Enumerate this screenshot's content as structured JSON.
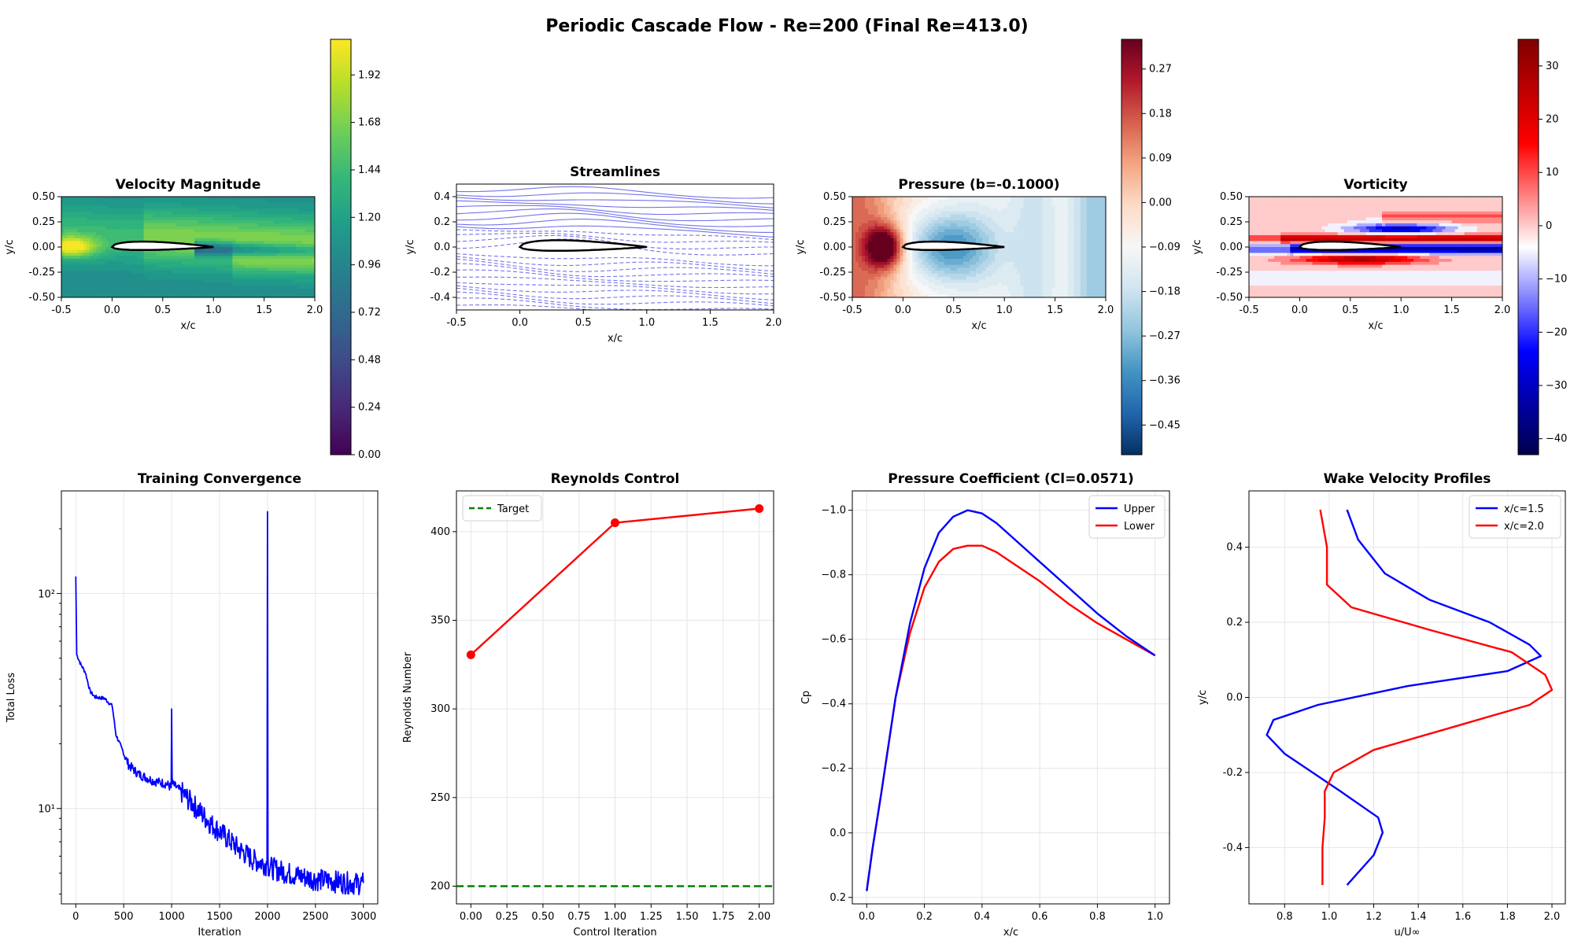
{
  "figure": {
    "suptitle": "Periodic Cascade Flow - Re=200 (Final Re=413.0)",
    "colors": {
      "viridis": [
        "#440154",
        "#482878",
        "#3e4a89",
        "#31688e",
        "#26828e",
        "#1f9e89",
        "#35b779",
        "#6ece58",
        "#b5de2b",
        "#fde725"
      ],
      "rdbu_red": "#67001f",
      "rdbu_blue": "#053061",
      "seismic_red": "#800000",
      "seismic_blue": "#00004c",
      "stream": "#5a5ae6",
      "blue": "#0000ff",
      "red": "#ff0000",
      "green": "#008000",
      "grid": "#e6e6e6"
    }
  },
  "chart_data": [
    {
      "id": "velocity",
      "type": "heatmap",
      "title": "Velocity Magnitude",
      "xlabel": "x/c",
      "ylabel": "y/c",
      "xlim": [
        -0.5,
        2.0
      ],
      "ylim": [
        -0.5,
        0.5
      ],
      "xticks": [
        "-0.5",
        "0.0",
        "0.5",
        "1.0",
        "1.5",
        "2.0"
      ],
      "yticks": [
        "-0.50",
        "-0.25",
        "0.00",
        "0.25",
        "0.50"
      ],
      "colorbar": {
        "range": [
          0,
          2.1
        ],
        "ticks": [
          "0.00",
          "0.24",
          "0.48",
          "0.72",
          "0.96",
          "1.20",
          "1.44",
          "1.68",
          "1.92"
        ]
      }
    },
    {
      "id": "streamlines",
      "type": "line",
      "title": "Streamlines",
      "xlabel": "x/c",
      "ylabel": "y/c",
      "xlim": [
        -0.5,
        2.0
      ],
      "ylim": [
        -0.5,
        0.5
      ],
      "xticks": [
        "-0.5",
        "0.0",
        "0.5",
        "1.0",
        "1.5",
        "2.0"
      ],
      "yticks": [
        "-0.4",
        "-0.2",
        "0.0",
        "0.2",
        "0.4"
      ]
    },
    {
      "id": "pressure",
      "type": "heatmap",
      "title": "Pressure (b=-0.1000)",
      "xlabel": "x/c",
      "ylabel": "y/c",
      "xlim": [
        -0.5,
        2.0
      ],
      "ylim": [
        -0.5,
        0.5
      ],
      "xticks": [
        "-0.5",
        "0.0",
        "0.5",
        "1.0",
        "1.5",
        "2.0"
      ],
      "yticks": [
        "-0.50",
        "-0.25",
        "0.00",
        "0.25",
        "0.50"
      ],
      "colorbar": {
        "range": [
          -0.51,
          0.33
        ],
        "ticks": [
          "−0.45",
          "−0.36",
          "−0.27",
          "−0.18",
          "−0.09",
          "0.00",
          "0.09",
          "0.18",
          "0.27"
        ]
      }
    },
    {
      "id": "vorticity",
      "type": "heatmap",
      "title": "Vorticity",
      "xlabel": "x/c",
      "ylabel": "y/c",
      "xlim": [
        -0.5,
        2.0
      ],
      "ylim": [
        -0.5,
        0.5
      ],
      "xticks": [
        "-0.5",
        "0.0",
        "0.5",
        "1.0",
        "1.5",
        "2.0"
      ],
      "yticks": [
        "-0.50",
        "-0.25",
        "0.00",
        "0.25",
        "0.50"
      ],
      "colorbar": {
        "range": [
          -43,
          35
        ],
        "ticks": [
          "−40",
          "−30",
          "−20",
          "−10",
          "0",
          "10",
          "20",
          "30"
        ]
      }
    },
    {
      "id": "training",
      "type": "line",
      "title": "Training Convergence",
      "xlabel": "Iteration",
      "ylabel": "Total Loss",
      "yscale": "log",
      "xlim": [
        -150,
        3150
      ],
      "ylim": [
        3.6,
        300
      ],
      "xticks": [
        "0",
        "500",
        "1000",
        "1500",
        "2000",
        "2500",
        "3000"
      ],
      "yticks": [
        "10¹",
        "10²"
      ],
      "series": [
        {
          "x": [
            0,
            10,
            50,
            100,
            150,
            200,
            300,
            380,
            420,
            480,
            550,
            650,
            800,
            950,
            995,
            1000,
            1005,
            1010,
            1100,
            1250,
            1400,
            1550,
            1700,
            1850,
            1995,
            2000,
            2005,
            2010,
            2100,
            2300,
            2500,
            2700,
            2900,
            3000
          ],
          "y": [
            120,
            52,
            47,
            43,
            35,
            33,
            32.5,
            30,
            22,
            19,
            16,
            14.5,
            13.5,
            13,
            12.5,
            29,
            14,
            13,
            12,
            10.2,
            8.6,
            7.5,
            6.5,
            5.8,
            5.5,
            240,
            6,
            5.4,
            5.2,
            4.9,
            4.7,
            4.6,
            4.5,
            4.5
          ]
        }
      ]
    },
    {
      "id": "reynolds",
      "type": "line",
      "title": "Reynolds Control",
      "xlabel": "Control Iteration",
      "ylabel": "Reynolds Number",
      "xlim": [
        -0.1,
        2.1
      ],
      "ylim": [
        190,
        423
      ],
      "xticks": [
        "0.00",
        "0.25",
        "0.50",
        "0.75",
        "1.00",
        "1.25",
        "1.50",
        "1.75",
        "2.00"
      ],
      "yticks": [
        "200",
        "250",
        "300",
        "350",
        "400"
      ],
      "legend": [
        "Target"
      ],
      "target": 200,
      "series": [
        {
          "x": [
            0,
            1,
            2
          ],
          "y": [
            330.5,
            405,
            413
          ]
        }
      ]
    },
    {
      "id": "cp",
      "type": "line",
      "title": "Pressure Coefficient (Cl=0.0571)",
      "xlabel": "x/c",
      "ylabel": "Cp",
      "xlim": [
        -0.05,
        1.05
      ],
      "ylim": [
        0.22,
        -1.06
      ],
      "xticks": [
        "0.0",
        "0.2",
        "0.4",
        "0.6",
        "0.8",
        "1.0"
      ],
      "yticks": [
        "0.2",
        "0.0",
        "−0.2",
        "−0.4",
        "−0.6",
        "−0.8",
        "−1.0"
      ],
      "legend": [
        "Upper",
        "Lower"
      ],
      "series": [
        {
          "name": "Upper",
          "x": [
            0,
            0.02,
            0.05,
            0.1,
            0.15,
            0.2,
            0.25,
            0.3,
            0.35,
            0.4,
            0.45,
            0.5,
            0.6,
            0.7,
            0.8,
            0.9,
            1.0
          ],
          "y": [
            0.18,
            0.05,
            -0.12,
            -0.42,
            -0.65,
            -0.82,
            -0.93,
            -0.98,
            -1.0,
            -0.99,
            -0.96,
            -0.92,
            -0.84,
            -0.76,
            -0.68,
            -0.61,
            -0.55
          ]
        },
        {
          "name": "Lower",
          "x": [
            0,
            0.02,
            0.05,
            0.1,
            0.15,
            0.2,
            0.25,
            0.3,
            0.35,
            0.4,
            0.45,
            0.5,
            0.6,
            0.7,
            0.8,
            0.9,
            1.0
          ],
          "y": [
            0.18,
            0.05,
            -0.12,
            -0.42,
            -0.62,
            -0.76,
            -0.84,
            -0.88,
            -0.89,
            -0.89,
            -0.87,
            -0.84,
            -0.78,
            -0.71,
            -0.65,
            -0.6,
            -0.55
          ]
        }
      ]
    },
    {
      "id": "wake",
      "type": "line",
      "title": "Wake Velocity Profiles",
      "xlabel": "u/U∞",
      "ylabel": "y/c",
      "xlim": [
        0.64,
        2.06
      ],
      "ylim": [
        -0.55,
        0.55
      ],
      "xticks": [
        "0.8",
        "1.0",
        "1.2",
        "1.4",
        "1.6",
        "1.8",
        "2.0"
      ],
      "yticks": [
        "-0.4",
        "-0.2",
        "0.0",
        "0.2",
        "0.4"
      ],
      "legend": [
        "x/c=1.5",
        "x/c=2.0"
      ],
      "series": [
        {
          "name": "x/c=1.5",
          "x": [
            1.08,
            1.13,
            1.25,
            1.45,
            1.72,
            1.9,
            1.95,
            1.8,
            1.35,
            0.95,
            0.75,
            0.72,
            0.8,
            1.05,
            1.22,
            1.24,
            1.2,
            1.08
          ],
          "y": [
            0.5,
            0.42,
            0.33,
            0.26,
            0.2,
            0.14,
            0.11,
            0.07,
            0.03,
            -0.02,
            -0.06,
            -0.1,
            -0.15,
            -0.25,
            -0.32,
            -0.36,
            -0.42,
            -0.5
          ]
        },
        {
          "name": "x/c=2.0",
          "x": [
            0.96,
            0.99,
            0.99,
            1.1,
            1.45,
            1.82,
            1.97,
            2.0,
            1.9,
            1.55,
            1.2,
            1.02,
            0.98,
            0.98,
            0.97,
            0.97
          ],
          "y": [
            0.5,
            0.4,
            0.3,
            0.24,
            0.18,
            0.12,
            0.06,
            0.02,
            -0.02,
            -0.08,
            -0.14,
            -0.2,
            -0.25,
            -0.32,
            -0.4,
            -0.5
          ]
        }
      ]
    }
  ]
}
